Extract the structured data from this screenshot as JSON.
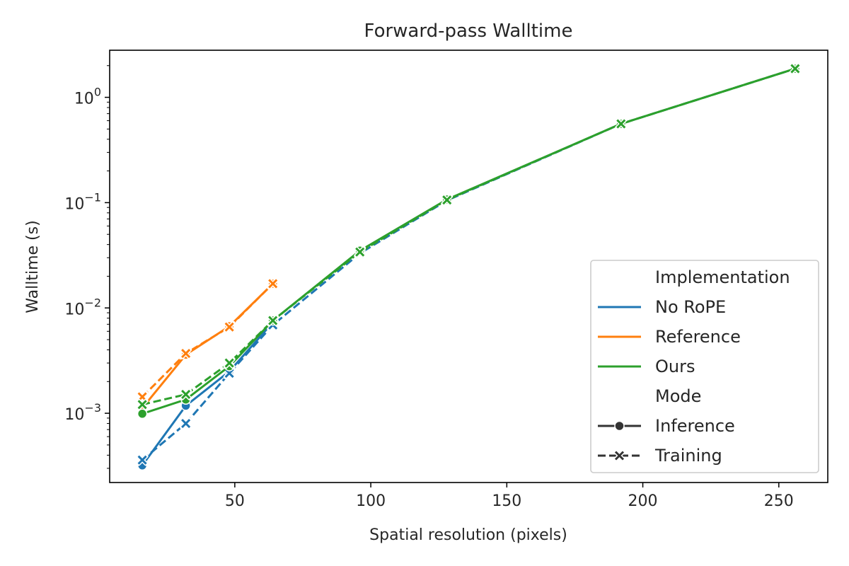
{
  "chart_data": {
    "type": "line",
    "title": "Forward-pass Walltime",
    "xlabel": "Spatial resolution (pixels)",
    "ylabel": "Walltime (s)",
    "xlim": [
      4,
      268
    ],
    "ylim": [
      0.00022,
      2.8
    ],
    "yscale": "log",
    "x_ticks": [
      50,
      100,
      150,
      200,
      250
    ],
    "y_ticks": [
      {
        "value": 0.001,
        "base": "10",
        "exp": "−3"
      },
      {
        "value": 0.01,
        "base": "10",
        "exp": "−2"
      },
      {
        "value": 0.1,
        "base": "10",
        "exp": "−1"
      },
      {
        "value": 1,
        "base": "10",
        "exp": "0"
      }
    ],
    "grid": false,
    "legend_position": "lower-right",
    "legend": {
      "hue_title": "Implementation",
      "style_title": "Mode",
      "hue_entries": [
        {
          "label": "No RoPE",
          "color": "#1f77b4"
        },
        {
          "label": "Reference",
          "color": "#ff7f0e"
        },
        {
          "label": "Ours",
          "color": "#2ca02c"
        }
      ],
      "style_entries": [
        {
          "label": "Inference",
          "marker": "circle",
          "dash": "solid"
        },
        {
          "label": "Training",
          "marker": "x",
          "dash": "dashed"
        }
      ],
      "style_color": "#333333"
    },
    "series": [
      {
        "implementation": "No RoPE",
        "mode": "Inference",
        "color": "#1f77b4",
        "marker": "circle",
        "dash": "solid",
        "x": [
          16,
          32,
          48,
          64
        ],
        "y": [
          0.00032,
          0.00118,
          0.0025,
          0.0073
        ]
      },
      {
        "implementation": "No RoPE",
        "mode": "Training",
        "color": "#1f77b4",
        "marker": "x",
        "dash": "dashed",
        "x": [
          16,
          32,
          48,
          64,
          96,
          128,
          192,
          256
        ],
        "y": [
          0.00036,
          0.0008,
          0.0024,
          0.0069,
          0.033,
          0.105,
          0.56,
          1.87
        ]
      },
      {
        "implementation": "Reference",
        "mode": "Inference",
        "color": "#ff7f0e",
        "marker": "circle",
        "dash": "solid",
        "x": [
          16,
          32,
          48,
          64
        ],
        "y": [
          0.00112,
          0.0036,
          0.0067,
          0.017
        ]
      },
      {
        "implementation": "Reference",
        "mode": "Training",
        "color": "#ff7f0e",
        "marker": "x",
        "dash": "dashed",
        "x": [
          16,
          32,
          48,
          64
        ],
        "y": [
          0.00143,
          0.0037,
          0.0066,
          0.017
        ]
      },
      {
        "implementation": "Ours",
        "mode": "Inference",
        "color": "#2ca02c",
        "marker": "circle",
        "dash": "solid",
        "x": [
          16,
          32,
          48,
          64,
          96,
          128,
          192,
          256
        ],
        "y": [
          0.00099,
          0.00135,
          0.0028,
          0.0076,
          0.035,
          0.107,
          0.56,
          1.87
        ]
      },
      {
        "implementation": "Ours",
        "mode": "Training",
        "color": "#2ca02c",
        "marker": "x",
        "dash": "dashed",
        "x": [
          16,
          32,
          48,
          64,
          96,
          128,
          192,
          256
        ],
        "y": [
          0.00121,
          0.00151,
          0.003,
          0.0076,
          0.034,
          0.106,
          0.56,
          1.87
        ]
      }
    ]
  }
}
